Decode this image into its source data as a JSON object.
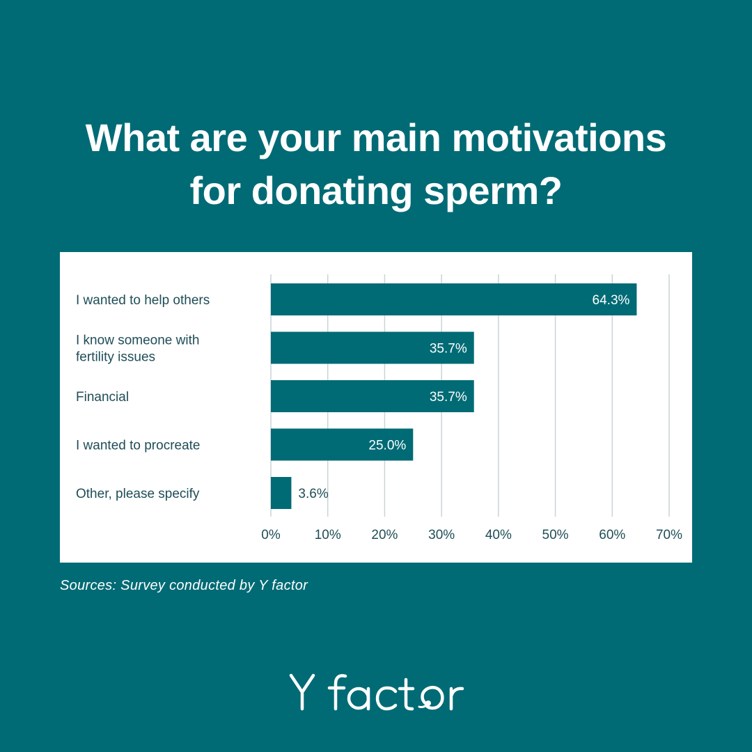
{
  "title_lines": [
    "What are your main motivations",
    "for donating sperm?"
  ],
  "source": "Sources: Survey conducted by Y factor",
  "logo_text": "Y factor",
  "colors": {
    "background": "#006b75",
    "bar": "#006b75",
    "panel": "#ffffff",
    "grid": "#c9d4d6",
    "label": "#1f4d57"
  },
  "chart_data": {
    "type": "bar",
    "orientation": "horizontal",
    "categories": [
      [
        "I wanted to help others"
      ],
      [
        "I know someone with",
        "fertility issues"
      ],
      [
        "Financial"
      ],
      [
        "I wanted to procreate"
      ],
      [
        "Other, please specify"
      ]
    ],
    "values": [
      64.3,
      35.7,
      35.7,
      25.0,
      3.6
    ],
    "value_labels": [
      "64.3%",
      "35.7%",
      "35.7%",
      "25.0%",
      "3.6%"
    ],
    "xlim": [
      0,
      70
    ],
    "xticks": [
      0,
      10,
      20,
      30,
      40,
      50,
      60,
      70
    ],
    "xtick_labels": [
      "0%",
      "10%",
      "20%",
      "30%",
      "40%",
      "50%",
      "60%",
      "70%"
    ],
    "grid": true
  }
}
